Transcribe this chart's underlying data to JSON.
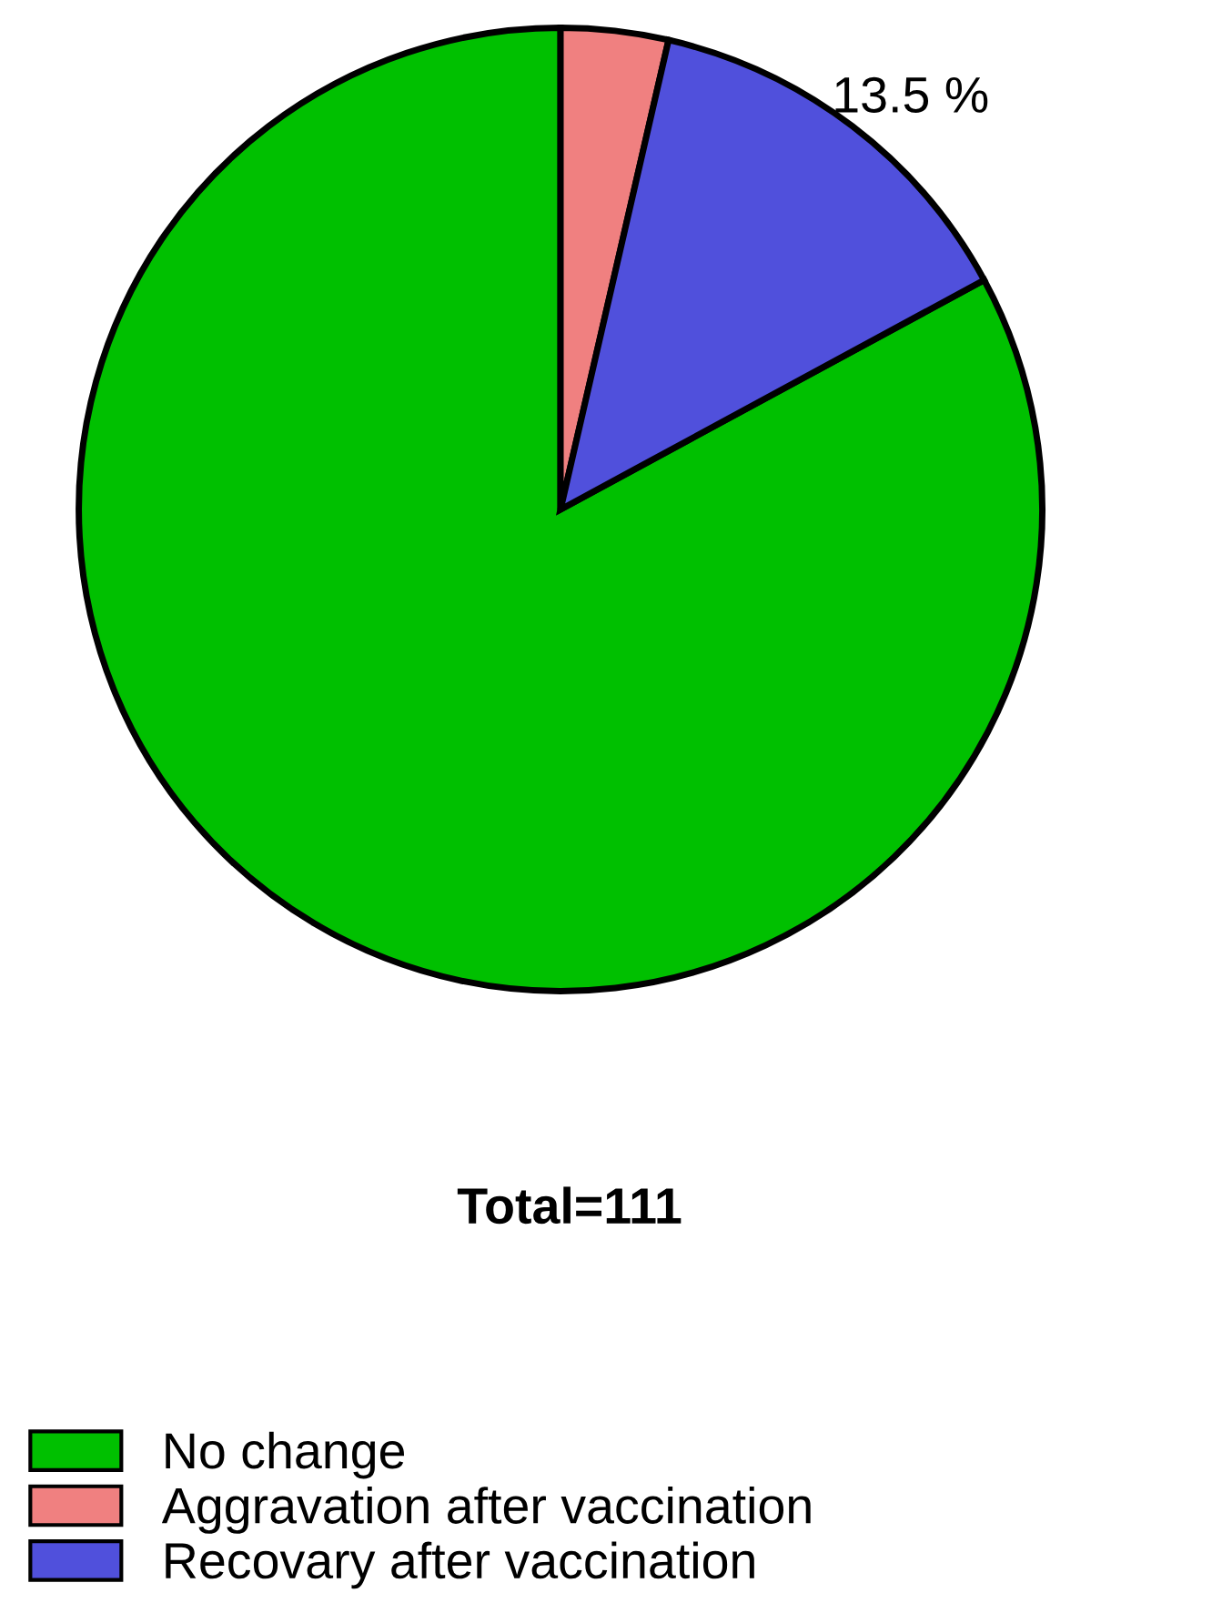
{
  "chart_data": {
    "type": "pie",
    "title": "Total=111",
    "categories": [
      "No change",
      "Aggravation after vaccination",
      "Recovary after vaccination"
    ],
    "values": [
      82.9,
      3.6,
      13.5
    ],
    "colors": [
      "#00c000",
      "#f08080",
      "#5050dc"
    ],
    "value_labels": [
      null,
      null,
      "13.5 %"
    ],
    "legend": "bottom left"
  }
}
